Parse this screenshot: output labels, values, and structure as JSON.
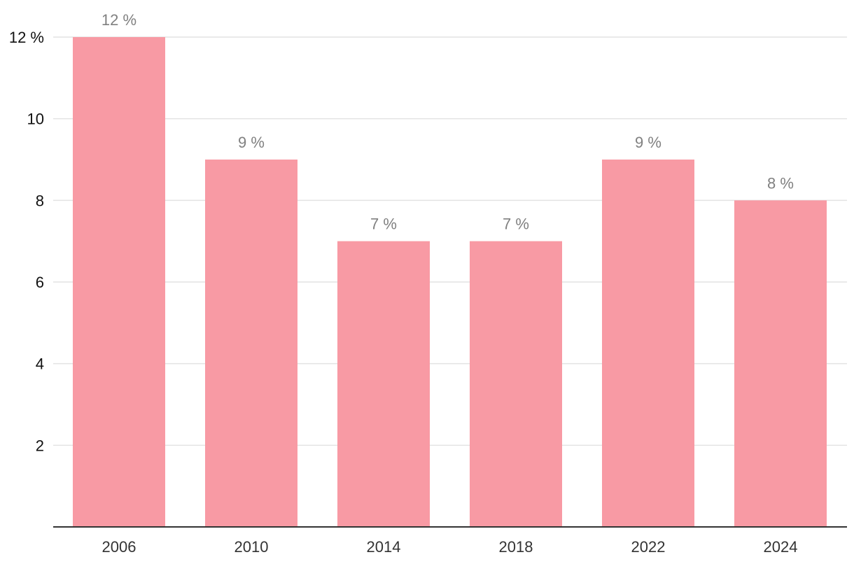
{
  "chart_data": {
    "type": "bar",
    "categories": [
      "2006",
      "2010",
      "2014",
      "2018",
      "2022",
      "2024"
    ],
    "values": [
      12,
      9,
      7,
      7,
      9,
      8
    ],
    "data_labels": [
      "12 %",
      "9 %",
      "7 %",
      "7 %",
      "9 %",
      "8 %"
    ],
    "ylim": [
      0,
      12
    ],
    "yticks": [
      2,
      4,
      6,
      8,
      10,
      12
    ],
    "ytick_labels": [
      "2",
      "4",
      "6",
      "8",
      "10",
      "12 %"
    ],
    "grid": true,
    "legend": "none",
    "bar_color": "#f89aa4",
    "grid_color": "#e3e3e3",
    "axis_color": "#333333"
  }
}
